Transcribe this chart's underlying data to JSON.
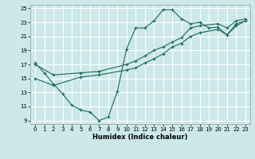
{
  "background_color": "#cce8e8",
  "grid_color": "#ffffff",
  "line_color": "#1a6b5a",
  "xlabel": "Humidex (Indice chaleur)",
  "xlim": [
    -0.5,
    23.5
  ],
  "ylim": [
    8.5,
    25.5
  ],
  "xticks": [
    0,
    1,
    2,
    3,
    4,
    5,
    6,
    7,
    8,
    9,
    10,
    11,
    12,
    13,
    14,
    15,
    16,
    17,
    18,
    19,
    20,
    21,
    22,
    23
  ],
  "yticks": [
    9,
    11,
    13,
    15,
    17,
    19,
    21,
    23,
    25
  ],
  "line1_x": [
    0,
    1,
    2,
    3,
    4,
    5,
    6,
    7,
    8,
    9,
    10,
    11,
    12,
    13,
    14,
    15,
    16,
    17,
    18,
    19,
    20,
    21,
    22,
    23
  ],
  "line1_y": [
    17.2,
    15.8,
    14.2,
    12.8,
    11.2,
    10.5,
    10.2,
    9.0,
    9.5,
    13.2,
    19.2,
    22.2,
    22.2,
    23.2,
    24.8,
    24.8,
    23.5,
    22.8,
    23.0,
    22.2,
    22.3,
    21.2,
    22.8,
    23.2
  ],
  "line2_x": [
    0,
    2,
    5,
    7,
    10,
    11,
    12,
    13,
    14,
    15,
    16,
    17,
    18,
    20,
    21,
    22,
    23
  ],
  "line2_y": [
    15.0,
    14.0,
    15.2,
    15.5,
    16.2,
    16.5,
    17.2,
    17.8,
    18.5,
    19.5,
    20.0,
    21.0,
    21.5,
    22.0,
    21.2,
    22.5,
    23.2
  ],
  "line3_x": [
    0,
    2,
    5,
    7,
    10,
    11,
    12,
    13,
    14,
    15,
    16,
    17,
    18,
    20,
    21,
    22,
    23
  ],
  "line3_y": [
    17.0,
    15.5,
    15.8,
    16.0,
    17.0,
    17.5,
    18.2,
    19.0,
    19.5,
    20.2,
    20.8,
    22.2,
    22.5,
    22.8,
    22.2,
    23.2,
    23.5
  ]
}
